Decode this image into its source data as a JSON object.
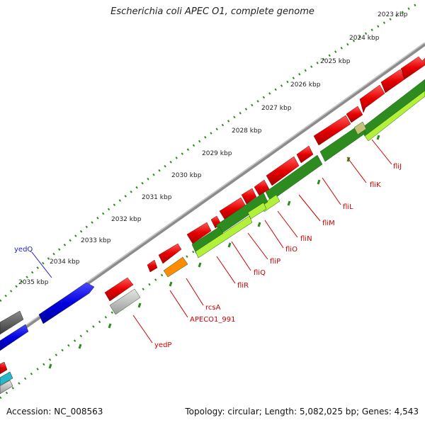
{
  "title": "Escherichia coli APEC O1, complete genome",
  "footer": {
    "accession": "Accession: NC_008563",
    "summary": "Topology: circular; Length: 5,082,025 bp; Genes: 4,543"
  },
  "colors": {
    "forward_gene": "#e60000",
    "reverse_gene": "#2e8b1f",
    "light_green": "#b3f03a",
    "blue_gene": "#0000e6",
    "orange_gene": "#ff8c00",
    "grey_gene": "#bdbdbd",
    "tick_green": "#2e8b1f",
    "label_red": "#cc0000",
    "label_blue": "#1d1dcc"
  },
  "scale_labels": [
    "2023 kbp",
    "2024 kbp",
    "2025 kbp",
    "2026 kbp",
    "2027 kbp",
    "2028 kbp",
    "2029 kbp",
    "2030 kbp",
    "2031 kbp",
    "2032 kbp",
    "2033 kbp",
    "2034 kbp",
    "2035 kbp"
  ],
  "gene_labels": [
    "yedQ",
    "fliJ",
    "fliK",
    "fliL",
    "fliM",
    "fliN",
    "fliO",
    "fliP",
    "fliQ",
    "fliR",
    "rcsA",
    "APECO1_991",
    "yedP"
  ]
}
